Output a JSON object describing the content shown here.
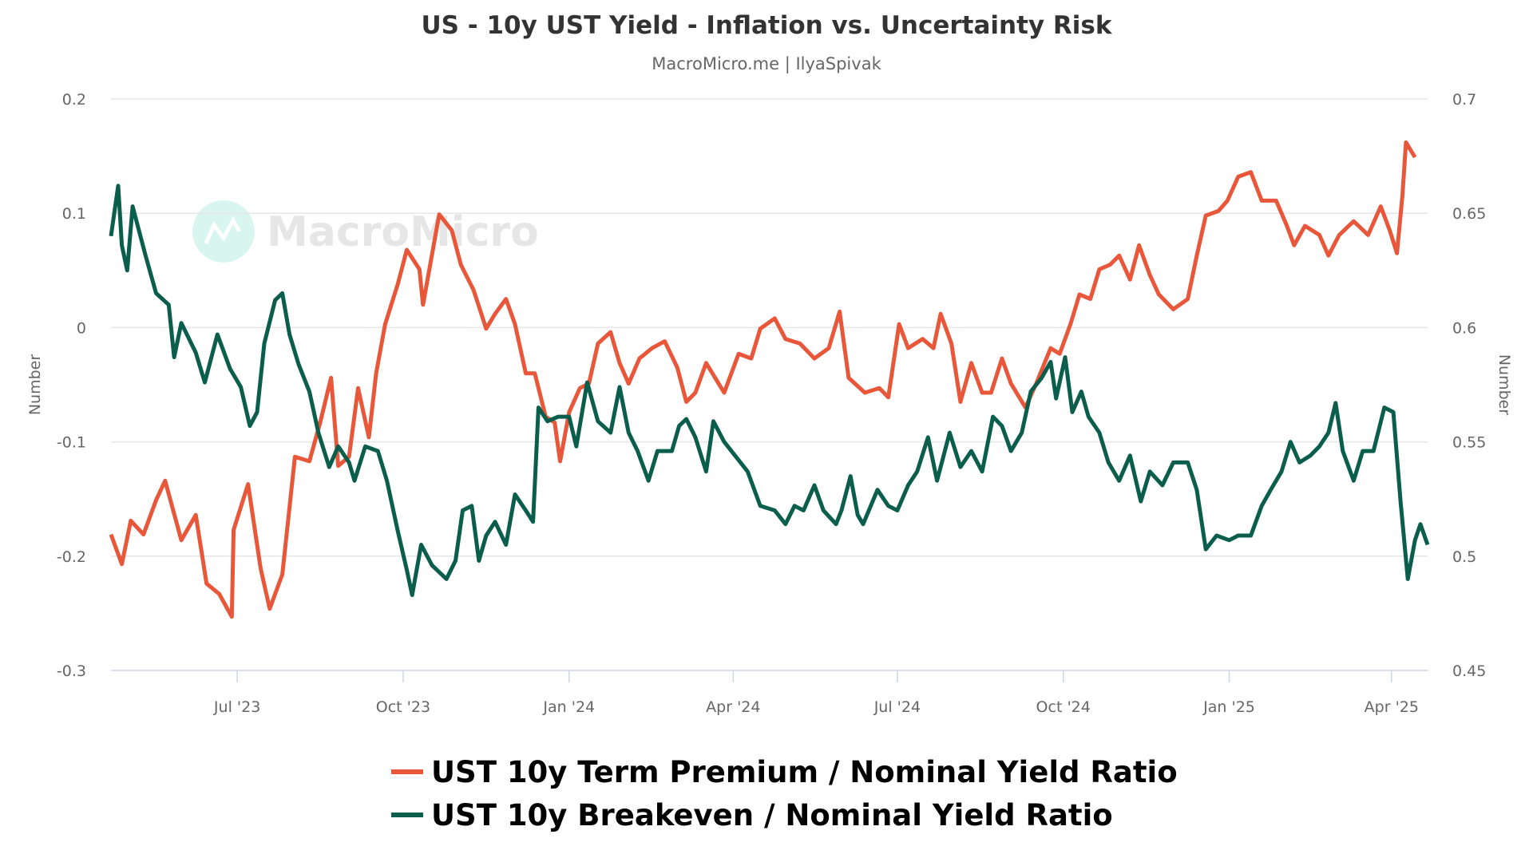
{
  "chart_data": {
    "type": "line",
    "title": "US - 10y UST Yield - Inflation vs. Uncertainty Risk",
    "subtitle": "MacroMicro.me | IlyaSpivak",
    "watermark": "MacroMicro",
    "xlabel": "",
    "ylabel_left": "Number",
    "ylabel_right": "Number",
    "xlim": [
      "2023-04-22",
      "2025-04-21"
    ],
    "ylim_left": [
      -0.3,
      0.2
    ],
    "ylim_right": [
      0.45,
      0.7
    ],
    "yticks_left": [
      "0.2",
      "0.1",
      "0",
      "-0.1",
      "-0.2",
      "-0.3"
    ],
    "yticks_right": [
      "0.7",
      "0.65",
      "0.6",
      "0.55",
      "0.5",
      "0.45"
    ],
    "xticks": [
      {
        "date": "2023-07-01",
        "label": "Jul '23"
      },
      {
        "date": "2023-10-01",
        "label": "Oct '23"
      },
      {
        "date": "2024-01-01",
        "label": "Jan '24"
      },
      {
        "date": "2024-04-01",
        "label": "Apr '24"
      },
      {
        "date": "2024-07-01",
        "label": "Jul '24"
      },
      {
        "date": "2024-10-01",
        "label": "Oct '24"
      },
      {
        "date": "2025-01-01",
        "label": "Jan '25"
      },
      {
        "date": "2025-04-01",
        "label": "Apr '25"
      }
    ],
    "grid": true,
    "legend_position": "bottom",
    "series": [
      {
        "name": "UST 10y Term Premium / Nominal Yield Ratio",
        "axis": "left",
        "color": "#e8573a",
        "x": [
          "2023-04-22",
          "2023-04-28",
          "2023-05-03",
          "2023-05-10",
          "2023-05-17",
          "2023-05-22",
          "2023-05-31",
          "2023-06-08",
          "2023-06-14",
          "2023-06-21",
          "2023-06-28",
          "2023-06-29",
          "2023-07-07",
          "2023-07-14",
          "2023-07-19",
          "2023-07-26",
          "2023-08-02",
          "2023-08-10",
          "2023-08-16",
          "2023-08-22",
          "2023-08-26",
          "2023-09-01",
          "2023-09-06",
          "2023-09-12",
          "2023-09-16",
          "2023-09-21",
          "2023-09-28",
          "2023-10-03",
          "2023-10-10",
          "2023-10-12",
          "2023-10-21",
          "2023-10-28",
          "2023-11-02",
          "2023-11-09",
          "2023-11-16",
          "2023-11-21",
          "2023-11-27",
          "2023-12-02",
          "2023-12-08",
          "2023-12-13",
          "2023-12-19",
          "2023-12-24",
          "2023-12-27",
          "2024-01-01",
          "2024-01-07",
          "2024-01-12",
          "2024-01-17",
          "2024-01-24",
          "2024-01-29",
          "2024-02-03",
          "2024-02-09",
          "2024-02-16",
          "2024-02-23",
          "2024-03-01",
          "2024-03-06",
          "2024-03-11",
          "2024-03-17",
          "2024-03-22",
          "2024-03-27",
          "2024-04-04",
          "2024-04-11",
          "2024-04-16",
          "2024-04-24",
          "2024-04-30",
          "2024-05-08",
          "2024-05-16",
          "2024-05-24",
          "2024-05-30",
          "2024-06-04",
          "2024-06-13",
          "2024-06-21",
          "2024-06-26",
          "2024-07-02",
          "2024-07-07",
          "2024-07-15",
          "2024-07-21",
          "2024-07-25",
          "2024-07-31",
          "2024-08-05",
          "2024-08-11",
          "2024-08-17",
          "2024-08-22",
          "2024-08-28",
          "2024-09-02",
          "2024-09-10",
          "2024-09-16",
          "2024-09-24",
          "2024-09-29",
          "2024-10-05",
          "2024-10-10",
          "2024-10-16",
          "2024-10-21",
          "2024-10-27",
          "2024-11-01",
          "2024-11-07",
          "2024-11-12",
          "2024-11-18",
          "2024-11-23",
          "2024-12-01",
          "2024-12-09",
          "2024-12-14",
          "2024-12-19",
          "2024-12-26",
          "2024-12-31",
          "2025-01-06",
          "2025-01-13",
          "2025-01-19",
          "2025-01-27",
          "2025-02-02",
          "2025-02-06",
          "2025-02-12",
          "2025-02-20",
          "2025-02-25",
          "2025-03-03",
          "2025-03-11",
          "2025-03-19",
          "2025-03-26",
          "2025-03-31",
          "2025-04-04",
          "2025-04-07",
          "2025-04-09",
          "2025-04-14"
        ],
        "y": [
          -0.181,
          -0.207,
          -0.169,
          -0.181,
          -0.151,
          -0.134,
          -0.186,
          -0.164,
          -0.224,
          -0.233,
          -0.253,
          -0.177,
          -0.137,
          -0.211,
          -0.246,
          -0.216,
          -0.113,
          -0.117,
          -0.083,
          -0.044,
          -0.121,
          -0.113,
          -0.053,
          -0.096,
          -0.04,
          0.003,
          0.038,
          0.068,
          0.051,
          0.02,
          0.099,
          0.085,
          0.055,
          0.033,
          -0.001,
          0.012,
          0.025,
          0.003,
          -0.04,
          -0.04,
          -0.078,
          -0.083,
          -0.117,
          -0.074,
          -0.053,
          -0.049,
          -0.014,
          -0.004,
          -0.031,
          -0.049,
          -0.027,
          -0.018,
          -0.012,
          -0.035,
          -0.065,
          -0.057,
          -0.031,
          -0.044,
          -0.057,
          -0.023,
          -0.027,
          -0.001,
          0.008,
          -0.01,
          -0.014,
          -0.027,
          -0.018,
          0.014,
          -0.044,
          -0.057,
          -0.053,
          -0.061,
          0.003,
          -0.018,
          -0.01,
          -0.018,
          0.012,
          -0.014,
          -0.065,
          -0.031,
          -0.057,
          -0.057,
          -0.027,
          -0.049,
          -0.07,
          -0.049,
          -0.018,
          -0.023,
          0.003,
          0.029,
          0.025,
          0.051,
          0.055,
          0.063,
          0.042,
          0.072,
          0.046,
          0.029,
          0.016,
          0.025,
          0.063,
          0.098,
          0.102,
          0.111,
          0.132,
          0.136,
          0.111,
          0.111,
          0.089,
          0.072,
          0.089,
          0.081,
          0.063,
          0.081,
          0.093,
          0.081,
          0.106,
          0.085,
          0.065,
          0.115,
          0.162,
          0.149
        ]
      },
      {
        "name": "UST 10y Breakeven / Nominal Yield Ratio",
        "axis": "right",
        "color": "#0b5e4b",
        "x": [
          "2023-04-22",
          "2023-04-26",
          "2023-04-28",
          "2023-05-01",
          "2023-05-04",
          "2023-05-11",
          "2023-05-17",
          "2023-05-24",
          "2023-05-27",
          "2023-05-31",
          "2023-06-08",
          "2023-06-13",
          "2023-06-20",
          "2023-06-27",
          "2023-07-03",
          "2023-07-08",
          "2023-07-12",
          "2023-07-16",
          "2023-07-22",
          "2023-07-26",
          "2023-07-30",
          "2023-08-04",
          "2023-08-10",
          "2023-08-15",
          "2023-08-21",
          "2023-08-26",
          "2023-09-01",
          "2023-09-04",
          "2023-09-10",
          "2023-09-17",
          "2023-09-22",
          "2023-09-28",
          "2023-10-03",
          "2023-10-06",
          "2023-10-11",
          "2023-10-17",
          "2023-10-25",
          "2023-10-30",
          "2023-11-03",
          "2023-11-08",
          "2023-11-12",
          "2023-11-16",
          "2023-11-21",
          "2023-11-27",
          "2023-12-02",
          "2023-12-08",
          "2023-12-12",
          "2023-12-15",
          "2023-12-20",
          "2023-12-26",
          "2024-01-01",
          "2024-01-05",
          "2024-01-11",
          "2024-01-17",
          "2024-01-24",
          "2024-01-29",
          "2024-02-03",
          "2024-02-08",
          "2024-02-14",
          "2024-02-19",
          "2024-02-27",
          "2024-03-02",
          "2024-03-06",
          "2024-03-11",
          "2024-03-17",
          "2024-03-21",
          "2024-03-27",
          "2024-04-02",
          "2024-04-09",
          "2024-04-16",
          "2024-04-24",
          "2024-04-30",
          "2024-05-05",
          "2024-05-10",
          "2024-05-16",
          "2024-05-21",
          "2024-05-28",
          "2024-05-31",
          "2024-06-05",
          "2024-06-09",
          "2024-06-12",
          "2024-06-20",
          "2024-06-26",
          "2024-07-01",
          "2024-07-07",
          "2024-07-12",
          "2024-07-18",
          "2024-07-23",
          "2024-07-30",
          "2024-08-05",
          "2024-08-11",
          "2024-08-17",
          "2024-08-23",
          "2024-08-28",
          "2024-09-02",
          "2024-09-08",
          "2024-09-13",
          "2024-09-19",
          "2024-09-24",
          "2024-09-27",
          "2024-10-02",
          "2024-10-06",
          "2024-10-11",
          "2024-10-15",
          "2024-10-21",
          "2024-10-26",
          "2024-11-01",
          "2024-11-07",
          "2024-11-13",
          "2024-11-18",
          "2024-11-25",
          "2024-12-01",
          "2024-12-09",
          "2024-12-14",
          "2024-12-19",
          "2024-12-25",
          "2025-01-01",
          "2025-01-06",
          "2025-01-13",
          "2025-01-19",
          "2025-01-24",
          "2025-01-30",
          "2025-02-04",
          "2025-02-09",
          "2025-02-15",
          "2025-02-20",
          "2025-02-25",
          "2025-03-01",
          "2025-03-05",
          "2025-03-11",
          "2025-03-16",
          "2025-03-22",
          "2025-03-28",
          "2025-04-02",
          "2025-04-06",
          "2025-04-10",
          "2025-04-14",
          "2025-04-17",
          "2025-04-21"
        ],
        "y": [
          0.64,
          0.662,
          0.636,
          0.625,
          0.653,
          0.632,
          0.615,
          0.61,
          0.587,
          0.602,
          0.589,
          0.576,
          0.597,
          0.582,
          0.574,
          0.557,
          0.563,
          0.593,
          0.612,
          0.615,
          0.597,
          0.584,
          0.572,
          0.554,
          0.539,
          0.548,
          0.541,
          0.533,
          0.548,
          0.546,
          0.533,
          0.511,
          0.494,
          0.483,
          0.505,
          0.496,
          0.49,
          0.498,
          0.52,
          0.522,
          0.498,
          0.509,
          0.515,
          0.505,
          0.527,
          0.52,
          0.515,
          0.565,
          0.559,
          0.561,
          0.561,
          0.548,
          0.576,
          0.559,
          0.554,
          0.574,
          0.554,
          0.546,
          0.533,
          0.546,
          0.546,
          0.557,
          0.56,
          0.552,
          0.537,
          0.559,
          0.55,
          0.544,
          0.537,
          0.522,
          0.52,
          0.514,
          0.522,
          0.52,
          0.531,
          0.52,
          0.514,
          0.52,
          0.535,
          0.518,
          0.514,
          0.529,
          0.522,
          0.52,
          0.531,
          0.537,
          0.552,
          0.533,
          0.554,
          0.539,
          0.546,
          0.537,
          0.561,
          0.557,
          0.546,
          0.554,
          0.572,
          0.578,
          0.585,
          0.569,
          0.587,
          0.563,
          0.572,
          0.561,
          0.554,
          0.541,
          0.533,
          0.544,
          0.524,
          0.537,
          0.531,
          0.541,
          0.541,
          0.529,
          0.503,
          0.509,
          0.507,
          0.509,
          0.509,
          0.522,
          0.529,
          0.537,
          0.55,
          0.541,
          0.544,
          0.548,
          0.554,
          0.567,
          0.546,
          0.533,
          0.546,
          0.546,
          0.565,
          0.563,
          0.524,
          0.49,
          0.507,
          0.514,
          0.505
        ]
      }
    ]
  }
}
